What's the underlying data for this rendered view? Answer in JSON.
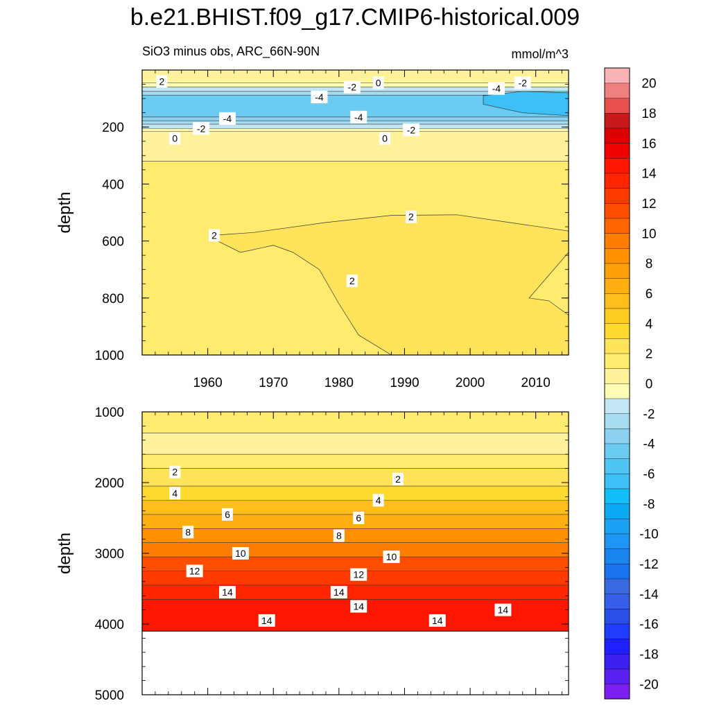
{
  "title": "b.e21.BHIST.f09_g17.CMIP6-historical.009",
  "chart_data": {
    "type": "heatmap",
    "title": "b.e21.BHIST.f09_g17.CMIP6-historical.009",
    "subtitle_left": "SiO3 minus obs, ARC_66N-90N",
    "subtitle_right": "mmol/m^3",
    "x_range": [
      1950,
      2015
    ],
    "x_ticks": [
      1960,
      1970,
      1980,
      1990,
      2000,
      2010
    ],
    "x_tick_labels": [
      "1960",
      "1970",
      "1980",
      "1990",
      "2000",
      "2010"
    ],
    "panels": [
      {
        "name": "upper",
        "ylabel": "depth",
        "ylim": [
          0,
          1000
        ],
        "y_ticks": [
          200,
          400,
          600,
          800,
          1000
        ],
        "y_tick_labels": [
          "200",
          "400",
          "600",
          "800",
          "1000"
        ],
        "x_tick_labels_shown": true,
        "bands": [
          {
            "top": 0,
            "bottom": 45,
            "value": 0.5
          },
          {
            "top": 45,
            "bottom": 60,
            "value": -0.8
          },
          {
            "top": 60,
            "bottom": 75,
            "value": -1.5
          },
          {
            "top": 75,
            "bottom": 88,
            "value": -2.5
          },
          {
            "top": 88,
            "bottom": 165,
            "value": -4.5
          },
          {
            "top": 165,
            "bottom": 178,
            "value": -3.5
          },
          {
            "top": 178,
            "bottom": 190,
            "value": -2.5
          },
          {
            "top": 190,
            "bottom": 205,
            "value": -1.5
          },
          {
            "top": 205,
            "bottom": 215,
            "value": -0.5
          },
          {
            "top": 215,
            "bottom": 320,
            "value": 0.5
          },
          {
            "top": 320,
            "bottom": 1000,
            "value": 1.5
          }
        ],
        "regions": [
          {
            "value": 2.5,
            "outline": [
              [
                1960.8,
                580
              ],
              [
                1967,
                570
              ],
              [
                1978,
                535
              ],
              [
                1988,
                510
              ],
              [
                1998,
                508
              ],
              [
                2006,
                535
              ],
              [
                2015,
                565
              ],
              [
                2015,
                1000
              ],
              [
                1988,
                1000
              ],
              [
                1983,
                930
              ],
              [
                1980,
                820
              ],
              [
                1977,
                700
              ],
              [
                1973,
                640
              ],
              [
                1970,
                615
              ],
              [
                1965,
                640
              ],
              [
                1961.5,
                600
              ]
            ]
          },
          {
            "value": 1.5,
            "outline": [
              [
                2015,
                640
              ],
              [
                2012,
                720
              ],
              [
                2009,
                800
              ],
              [
                2012,
                810
              ],
              [
                2015,
                860
              ]
            ]
          },
          {
            "value": -6.5,
            "outline": [
              [
                2002,
                90
              ],
              [
                2008,
                75
              ],
              [
                2015,
                80
              ],
              [
                2015,
                160
              ],
              [
                2008,
                150
              ],
              [
                2002,
                120
              ]
            ]
          }
        ],
        "contour_labels": [
          {
            "x": 1953,
            "y": 40,
            "value": "2"
          },
          {
            "x": 1963,
            "y": 170,
            "value": "-4"
          },
          {
            "x": 1959,
            "y": 205,
            "value": "-2"
          },
          {
            "x": 1955,
            "y": 240,
            "value": "0"
          },
          {
            "x": 1977,
            "y": 95,
            "value": "-4"
          },
          {
            "x": 1982,
            "y": 60,
            "value": "-2"
          },
          {
            "x": 1986,
            "y": 45,
            "value": "0"
          },
          {
            "x": 1983,
            "y": 165,
            "value": "-4"
          },
          {
            "x": 1991,
            "y": 210,
            "value": "-2"
          },
          {
            "x": 1987,
            "y": 240,
            "value": "0"
          },
          {
            "x": 2004,
            "y": 65,
            "value": "-4"
          },
          {
            "x": 2008,
            "y": 45,
            "value": "-2"
          },
          {
            "x": 1991,
            "y": 515,
            "value": "2"
          },
          {
            "x": 1961,
            "y": 580,
            "value": "2"
          },
          {
            "x": 1982,
            "y": 740,
            "value": "2"
          }
        ]
      },
      {
        "name": "lower",
        "ylabel": "depth",
        "ylim": [
          1000,
          5000
        ],
        "y_ticks": [
          1000,
          2000,
          3000,
          4000,
          5000
        ],
        "y_tick_labels": [
          "1000",
          "2000",
          "3000",
          "4000",
          "5000"
        ],
        "x_tick_labels_shown": false,
        "bottom_depth": 4100,
        "bands": [
          {
            "top": 1000,
            "bottom": 1300,
            "value": 1.5
          },
          {
            "top": 1300,
            "bottom": 1600,
            "value": 0.5
          },
          {
            "top": 1600,
            "bottom": 1800,
            "value": 1.5
          },
          {
            "top": 1800,
            "bottom": 2050,
            "value": 2.5
          },
          {
            "top": 2050,
            "bottom": 2250,
            "value": 3.5
          },
          {
            "top": 2250,
            "bottom": 2450,
            "value": 5.0
          },
          {
            "top": 2450,
            "bottom": 2650,
            "value": 6.5
          },
          {
            "top": 2650,
            "bottom": 2850,
            "value": 8.0
          },
          {
            "top": 2850,
            "bottom": 3050,
            "value": 9.5
          },
          {
            "top": 3050,
            "bottom": 3250,
            "value": 11.0
          },
          {
            "top": 3250,
            "bottom": 3450,
            "value": 12.5
          },
          {
            "top": 3450,
            "bottom": 3650,
            "value": 13.5
          },
          {
            "top": 3650,
            "bottom": 4100,
            "value": 14.5
          }
        ],
        "contour_labels": [
          {
            "x": 1955,
            "y": 1850,
            "value": "2"
          },
          {
            "x": 1955,
            "y": 2150,
            "value": "4"
          },
          {
            "x": 1963,
            "y": 2450,
            "value": "6"
          },
          {
            "x": 1957,
            "y": 2700,
            "value": "8"
          },
          {
            "x": 1965,
            "y": 3000,
            "value": "10"
          },
          {
            "x": 1958,
            "y": 3250,
            "value": "12"
          },
          {
            "x": 1963,
            "y": 3550,
            "value": "14"
          },
          {
            "x": 1969,
            "y": 3950,
            "value": "14"
          },
          {
            "x": 1980,
            "y": 3550,
            "value": "14"
          },
          {
            "x": 1983,
            "y": 3750,
            "value": "14"
          },
          {
            "x": 1983,
            "y": 3300,
            "value": "12"
          },
          {
            "x": 1988,
            "y": 3050,
            "value": "10"
          },
          {
            "x": 1980,
            "y": 2750,
            "value": "8"
          },
          {
            "x": 1983,
            "y": 2500,
            "value": "6"
          },
          {
            "x": 1986,
            "y": 2250,
            "value": "4"
          },
          {
            "x": 1989,
            "y": 1950,
            "value": "2"
          },
          {
            "x": 1995,
            "y": 3950,
            "value": "14"
          },
          {
            "x": 2005,
            "y": 3800,
            "value": "14"
          }
        ]
      }
    ],
    "colorbar": {
      "levels": [
        -20,
        -18,
        -16,
        -14,
        -12,
        -10,
        -8,
        -6,
        -4,
        -2,
        0,
        2,
        4,
        6,
        8,
        10,
        12,
        14,
        16,
        18,
        20
      ],
      "level_labels": [
        "-20",
        "-18",
        "-16",
        "-14",
        "-12",
        "-10",
        "-8",
        "-6",
        "-4",
        "-2",
        "0",
        "2",
        "4",
        "6",
        "8",
        "10",
        "12",
        "14",
        "16",
        "18",
        "20"
      ],
      "colors": [
        "#7c1ff0",
        "#5a20f0",
        "#3b20f0",
        "#1f20ff",
        "#1f3cff",
        "#2a4fe8",
        "#355fe8",
        "#3a6ae0",
        "#1a74f0",
        "#1a84f0",
        "#1f96f5",
        "#1aa2f5",
        "#0aaaf5",
        "#12bff8",
        "#3cc0f5",
        "#50c4f2",
        "#6ccbf0",
        "#8cd2f0",
        "#a6dcf0",
        "#c2e6f4",
        "#fffcb4",
        "#fff29a",
        "#ffeb6e",
        "#ffe35a",
        "#ffda2e",
        "#ffcc22",
        "#ffbe1a",
        "#ffb010",
        "#ffa00a",
        "#ff9000",
        "#ff7e00",
        "#ff6600",
        "#ff4e00",
        "#ff3a00",
        "#ff2600",
        "#ff1600",
        "#f00000",
        "#dc0000",
        "#c81a1a",
        "#e85050",
        "#f08080",
        "#f8b4b4"
      ]
    }
  }
}
